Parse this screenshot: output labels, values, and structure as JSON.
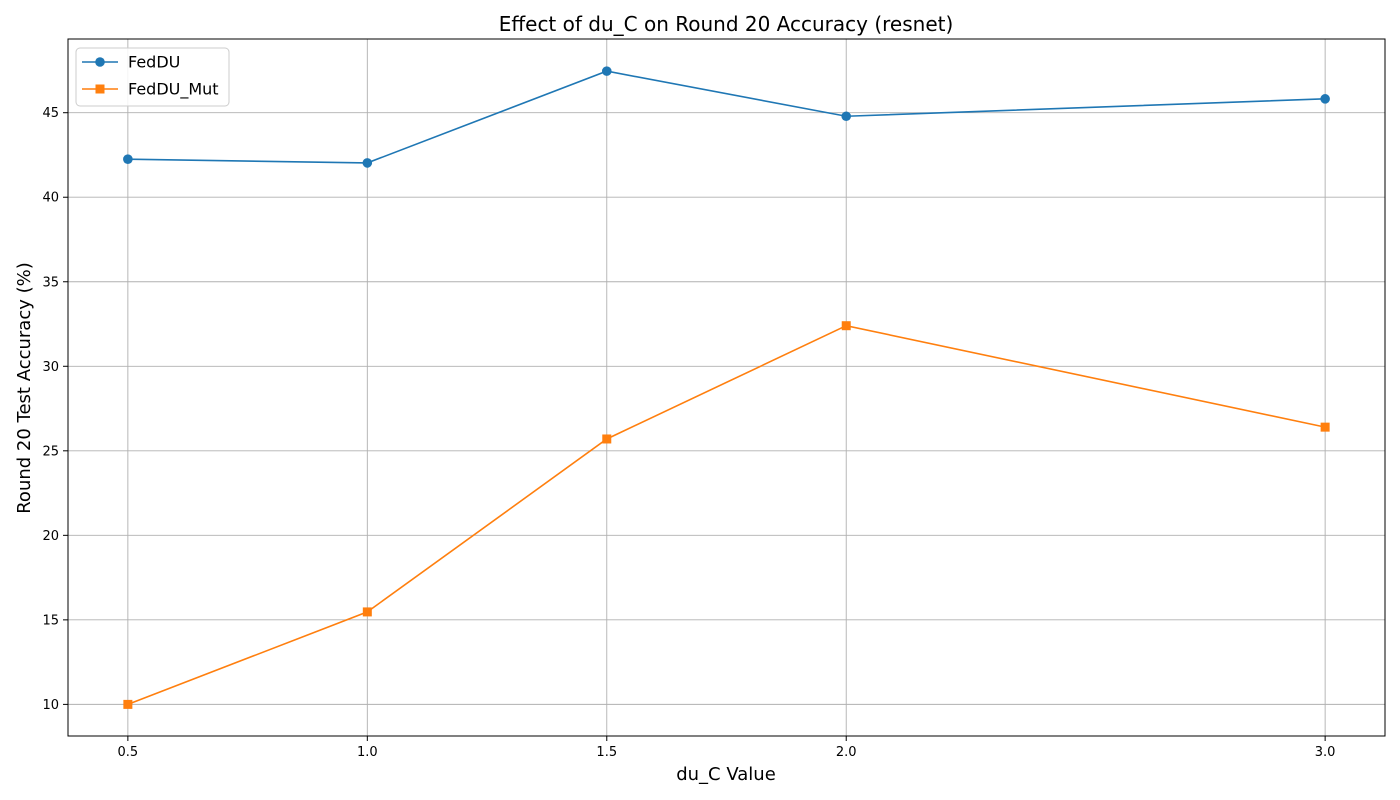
{
  "chart_data": {
    "type": "line",
    "title": "Effect of du_C on Round 20 Accuracy (resnet)",
    "xlabel": "du_C Value",
    "ylabel": "Round 20 Test Accuracy (%)",
    "x": [
      0.5,
      1.0,
      1.5,
      2.0,
      3.0
    ],
    "x_tick_labels": [
      "0.5",
      "1.0",
      "1.5",
      "2.0",
      "3.0"
    ],
    "xlim": [
      0.375,
      3.125
    ],
    "ylim": [
      8.13,
      49.36
    ],
    "y_ticks": [
      10,
      15,
      20,
      25,
      30,
      35,
      40,
      45
    ],
    "y_tick_labels": [
      "10",
      "15",
      "20",
      "25",
      "30",
      "35",
      "40",
      "45"
    ],
    "grid": true,
    "legend_position": "top-left",
    "series": [
      {
        "name": "FedDU",
        "color": "#1f77b4",
        "marker": "circle",
        "values": [
          42.25,
          42.03,
          47.46,
          44.79,
          45.82
        ]
      },
      {
        "name": "FedDU_Mut",
        "color": "#ff7f0e",
        "marker": "square",
        "values": [
          10.0,
          15.47,
          25.7,
          32.4,
          26.4
        ]
      }
    ]
  }
}
